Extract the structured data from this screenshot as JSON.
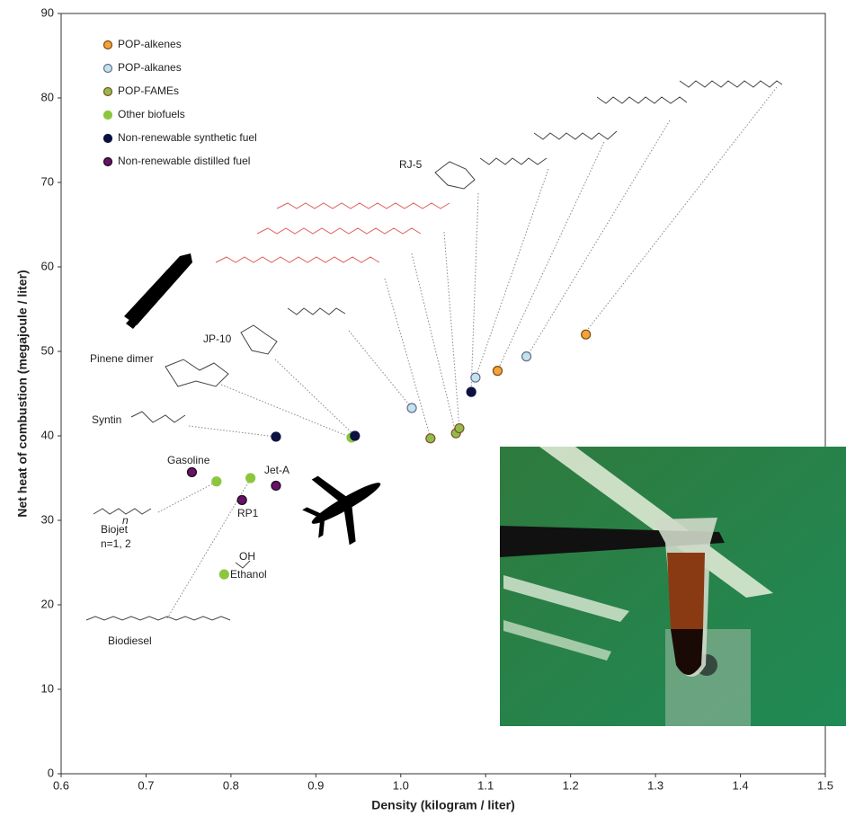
{
  "chart_data": {
    "type": "scatter",
    "xlabel": "Density (kilogram / liter)",
    "ylabel": "Net heat of combustion (megajoule / liter)",
    "xlim": [
      0.6,
      1.5
    ],
    "ylim": [
      0,
      90
    ],
    "xticks": [
      0.6,
      0.7,
      0.8,
      0.9,
      {
        "value": 1,
        "label": "1.0"
      },
      1.1,
      1.2,
      1.3,
      1.4,
      1.5
    ],
    "yticks": [
      0,
      10,
      20,
      30,
      40,
      50,
      60,
      70,
      80,
      90
    ],
    "legend": "upper left",
    "series": [
      {
        "name": "POP-alkenes",
        "color": "#f5a23a",
        "edge": "#7a4a10",
        "x": [
          1.114,
          1.218
        ],
        "values": [
          47.7,
          52.0
        ]
      },
      {
        "name": "POP-alkanes",
        "color": "#bfe4ee",
        "edge": "#6a6a8a",
        "x": [
          1.013,
          1.088,
          1.148
        ],
        "values": [
          43.3,
          46.9,
          49.4
        ]
      },
      {
        "name": "POP-FAMEs",
        "color": "#8cbf4a",
        "edge": "#8a4a2a",
        "x": [
          1.035,
          1.065,
          1.069
        ],
        "values": [
          39.7,
          40.3,
          40.9
        ]
      },
      {
        "name": "Other biofuels",
        "color": "#8cc63f",
        "edge": "#8cc63f",
        "x": [
          0.783,
          0.823,
          0.792,
          0.942
        ],
        "values": [
          34.6,
          35.0,
          23.6,
          39.8
        ]
      },
      {
        "name": "Non-renewable synthetic fuel",
        "color": "#0c1240",
        "edge": "#0c1240",
        "x": [
          0.853,
          0.946,
          1.083
        ],
        "values": [
          39.9,
          40.0,
          45.2
        ]
      },
      {
        "name": "Non-renewable distilled fuel",
        "color": "#6a0f6a",
        "edge": "#111111",
        "x": [
          0.754,
          0.813,
          0.853
        ],
        "values": [
          35.7,
          32.4,
          34.1
        ]
      }
    ],
    "annotations": [
      "RJ-5",
      "JP-10",
      "Pinene dimer",
      "Syntin",
      "Gasoline",
      "Jet-A",
      "RP1",
      "Biojet",
      "n=1, 2",
      "Ethanol",
      "OH",
      "Biodiesel",
      "n"
    ]
  }
}
